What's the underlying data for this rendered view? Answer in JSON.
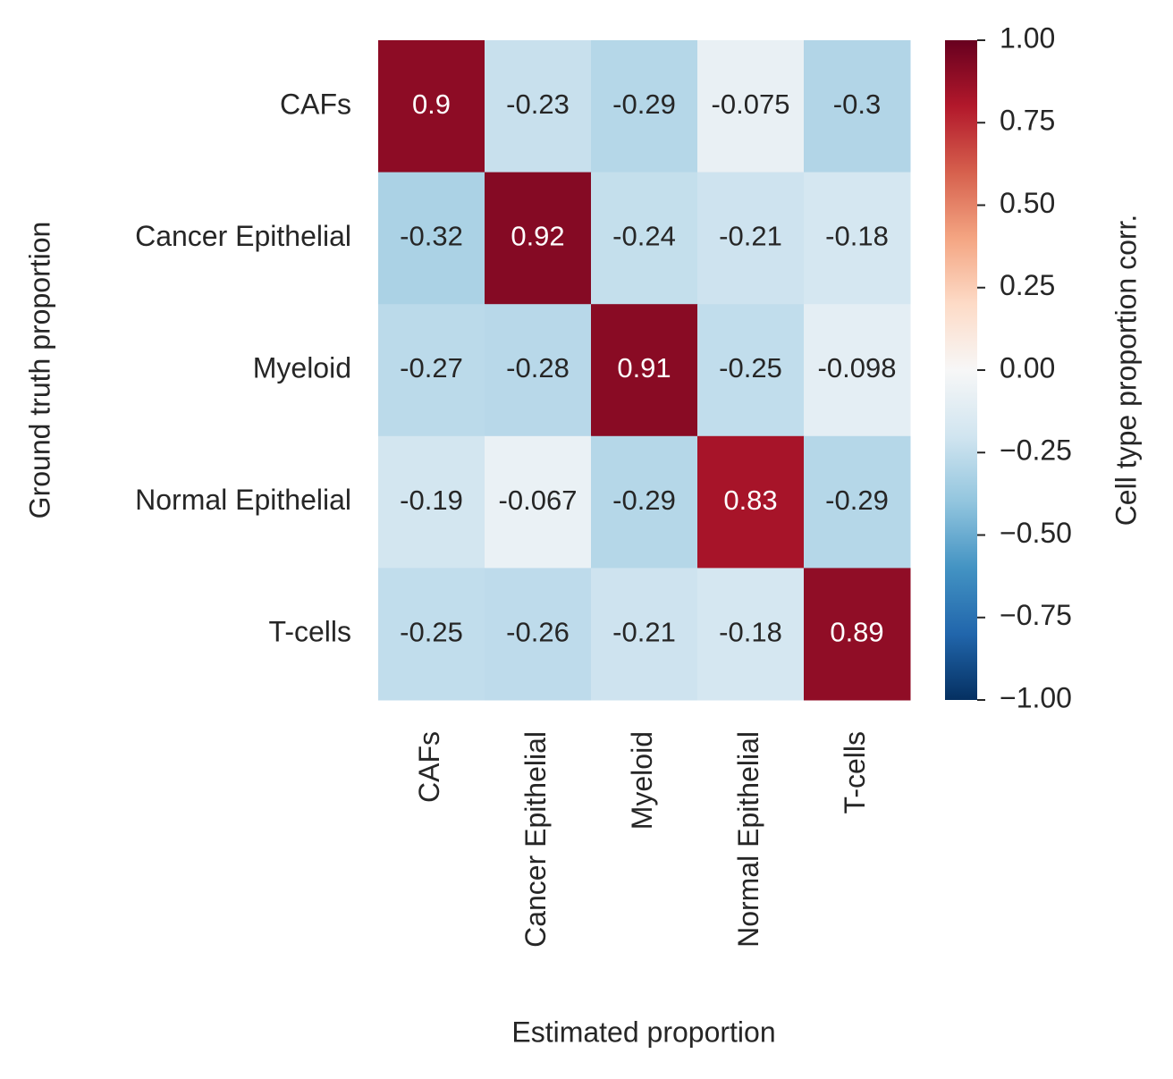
{
  "chart_data": {
    "type": "heatmap",
    "x_categories": [
      "CAFs",
      "Cancer Epithelial",
      "Myeloid",
      "Normal Epithelial",
      "T-cells"
    ],
    "y_categories": [
      "CAFs",
      "Cancer Epithelial",
      "Myeloid",
      "Normal Epithelial",
      "T-cells"
    ],
    "values": [
      [
        0.9,
        -0.23,
        -0.29,
        -0.075,
        -0.3
      ],
      [
        -0.32,
        0.92,
        -0.24,
        -0.21,
        -0.18
      ],
      [
        -0.27,
        -0.28,
        0.91,
        -0.25,
        -0.098
      ],
      [
        -0.19,
        -0.067,
        -0.29,
        0.83,
        -0.29
      ],
      [
        -0.25,
        -0.26,
        -0.21,
        -0.18,
        0.89
      ]
    ],
    "xlabel": "Estimated proportion",
    "ylabel": "Ground truth proportion",
    "colorbar_label": "Cell type proportion corr.",
    "colormap": "RdBu_r",
    "clim": [
      -1,
      1
    ],
    "cticks": [
      {
        "value": -1,
        "label": "−1.00"
      },
      {
        "value": -0.75,
        "label": "−0.75"
      },
      {
        "value": -0.5,
        "label": "−0.50"
      },
      {
        "value": -0.25,
        "label": "−0.25"
      },
      {
        "value": 0,
        "label": "0.00"
      },
      {
        "value": 0.25,
        "label": "0.25"
      },
      {
        "value": 0.5,
        "label": "0.50"
      },
      {
        "value": 0.75,
        "label": "0.75"
      },
      {
        "value": 1,
        "label": "1.00"
      }
    ]
  }
}
